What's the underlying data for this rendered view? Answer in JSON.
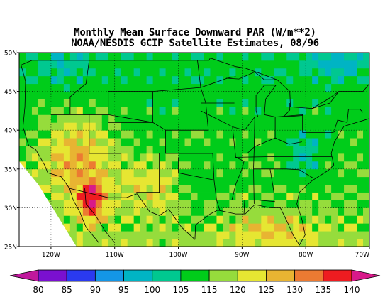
{
  "title_line1": "Monthly Mean Surface Downward PAR (W/m**2)",
  "title_line2": "NOAA/NESDIS GCIP Satellite Estimates, 08/96",
  "map": {
    "lon_range": [
      -125,
      -70
    ],
    "lat_range": [
      25,
      50
    ],
    "lat_ticks": [
      {
        "value": 50,
        "label": "50N"
      },
      {
        "value": 45,
        "label": "45N"
      },
      {
        "value": 40,
        "label": "40N"
      },
      {
        "value": 35,
        "label": "35N"
      },
      {
        "value": 30,
        "label": "30N"
      },
      {
        "value": 25,
        "label": "25N"
      }
    ],
    "lon_ticks": [
      {
        "value": -120,
        "label": "120W"
      },
      {
        "value": -110,
        "label": "110W"
      },
      {
        "value": -100,
        "label": "100W"
      },
      {
        "value": -90,
        "label": "90W"
      },
      {
        "value": -80,
        "label": "80W"
      },
      {
        "value": -70,
        "label": "70W"
      }
    ]
  },
  "colorbar": {
    "levels": [
      "80",
      "85",
      "90",
      "95",
      "100",
      "105",
      "115",
      "120",
      "125",
      "130",
      "135",
      "140"
    ],
    "colors": [
      "#c0189c",
      "#7a10d0",
      "#2a3af0",
      "#1496e6",
      "#00b4c4",
      "#00c890",
      "#00cc1a",
      "#96dc3c",
      "#e6e632",
      "#e8b432",
      "#ec7a32",
      "#ee1c20",
      "#d81a8a"
    ]
  }
}
